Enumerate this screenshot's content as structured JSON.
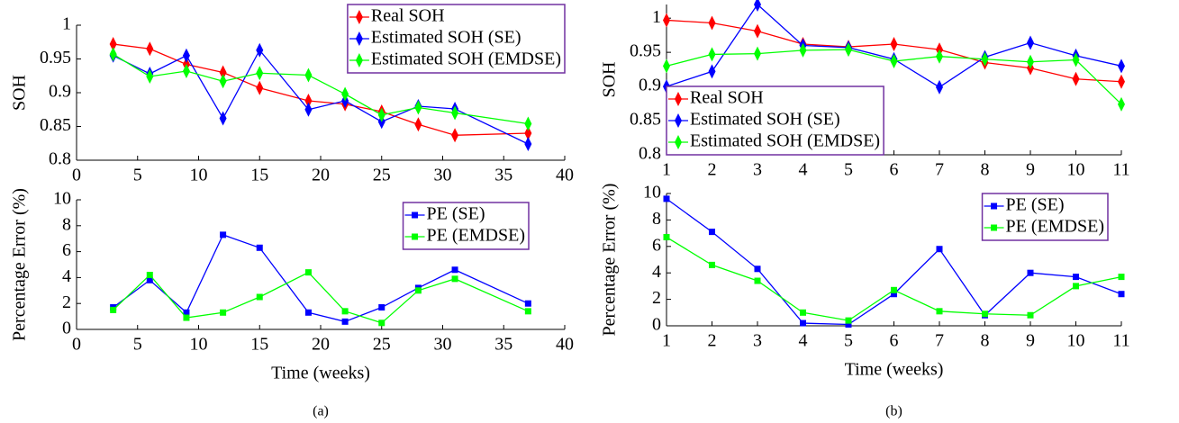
{
  "chart_data": [
    {
      "type": "line",
      "marker": "diamond",
      "ylabel": "SOH",
      "legend": "upper right",
      "x": [
        3,
        6,
        9,
        12,
        15,
        19,
        22,
        25,
        28,
        31,
        37
      ],
      "xlim": [
        0,
        40
      ],
      "xticks": [
        0,
        5,
        10,
        15,
        20,
        25,
        30,
        35,
        40
      ],
      "ylim": [
        0.8,
        1
      ],
      "yticks": [
        0.8,
        0.85,
        0.9,
        0.95,
        1
      ],
      "series": [
        {
          "name": "Real SOH",
          "color": "#ff0000",
          "values": [
            0.972,
            0.965,
            0.942,
            0.93,
            0.907,
            0.888,
            0.883,
            0.872,
            0.853,
            0.837,
            0.84
          ]
        },
        {
          "name": "Estimated SOH (SE)",
          "color": "#0000ff",
          "values": [
            0.955,
            0.928,
            0.955,
            0.862,
            0.963,
            0.875,
            0.888,
            0.857,
            0.88,
            0.876,
            0.824
          ]
        },
        {
          "name": "Estimated SOH (EMDSE)",
          "color": "#00ff00",
          "values": [
            0.957,
            0.924,
            0.932,
            0.917,
            0.929,
            0.926,
            0.898,
            0.867,
            0.878,
            0.87,
            0.854
          ]
        }
      ]
    },
    {
      "type": "line",
      "marker": "square",
      "ylabel": "Percentage Error (%)",
      "xlabel": "Time (weeks)",
      "caption": "(a)",
      "legend": "upper right",
      "x": [
        3,
        6,
        9,
        12,
        15,
        19,
        22,
        25,
        28,
        31,
        37
      ],
      "xlim": [
        0,
        40
      ],
      "xticks": [
        0,
        5,
        10,
        15,
        20,
        25,
        30,
        35,
        40
      ],
      "ylim": [
        0,
        10
      ],
      "yticks": [
        0,
        2,
        4,
        6,
        8,
        10
      ],
      "series": [
        {
          "name": "PE (SE)",
          "color": "#0000ff",
          "values": [
            1.7,
            3.8,
            1.3,
            7.3,
            6.3,
            1.3,
            0.6,
            1.7,
            3.2,
            4.6,
            2.0
          ]
        },
        {
          "name": "PE (EMDSE)",
          "color": "#00ff00",
          "values": [
            1.5,
            4.2,
            0.9,
            1.3,
            2.5,
            4.4,
            1.4,
            0.5,
            3.0,
            3.9,
            1.4
          ]
        }
      ]
    },
    {
      "type": "line",
      "marker": "diamond",
      "ylabel": "SOH",
      "legend": "lower left",
      "x": [
        1,
        2,
        3,
        4,
        5,
        6,
        7,
        8,
        9,
        10,
        11
      ],
      "xlim": [
        1,
        11
      ],
      "xticks": [
        1,
        2,
        3,
        4,
        5,
        6,
        7,
        8,
        9,
        10,
        11
      ],
      "ylim": [
        0.8,
        1.02
      ],
      "yticks": [
        0.8,
        0.85,
        0.9,
        0.95,
        1
      ],
      "series": [
        {
          "name": "Real SOH",
          "color": "#ff0000",
          "values": [
            0.997,
            0.993,
            0.981,
            0.962,
            0.958,
            0.962,
            0.954,
            0.935,
            0.927,
            0.911,
            0.907
          ]
        },
        {
          "name": "Estimated SOH (SE)",
          "color": "#0000ff",
          "values": [
            0.9,
            0.922,
            1.02,
            0.96,
            0.957,
            0.94,
            0.899,
            0.943,
            0.964,
            0.945,
            0.93
          ]
        },
        {
          "name": "Estimated SOH (EMDSE)",
          "color": "#00ff00",
          "values": [
            0.93,
            0.947,
            0.948,
            0.953,
            0.954,
            0.937,
            0.944,
            0.94,
            0.936,
            0.939,
            0.874
          ]
        }
      ]
    },
    {
      "type": "line",
      "marker": "square",
      "ylabel": "Percentage Error (%)",
      "xlabel": "Time (weeks)",
      "caption": "(b)",
      "legend": "upper right",
      "x": [
        1,
        2,
        3,
        4,
        5,
        6,
        7,
        8,
        9,
        10,
        11
      ],
      "xlim": [
        1,
        11
      ],
      "xticks": [
        1,
        2,
        3,
        4,
        5,
        6,
        7,
        8,
        9,
        10,
        11
      ],
      "ylim": [
        0,
        10
      ],
      "yticks": [
        0,
        2,
        4,
        6,
        8,
        10
      ],
      "series": [
        {
          "name": "PE (SE)",
          "color": "#0000ff",
          "values": [
            9.6,
            7.1,
            4.3,
            0.2,
            0.1,
            2.4,
            5.8,
            0.8,
            4.0,
            3.7,
            2.4
          ]
        },
        {
          "name": "PE (EMDSE)",
          "color": "#00ff00",
          "values": [
            6.7,
            4.6,
            3.4,
            1.0,
            0.4,
            2.7,
            1.1,
            0.9,
            0.8,
            3.0,
            3.7
          ]
        }
      ]
    }
  ]
}
